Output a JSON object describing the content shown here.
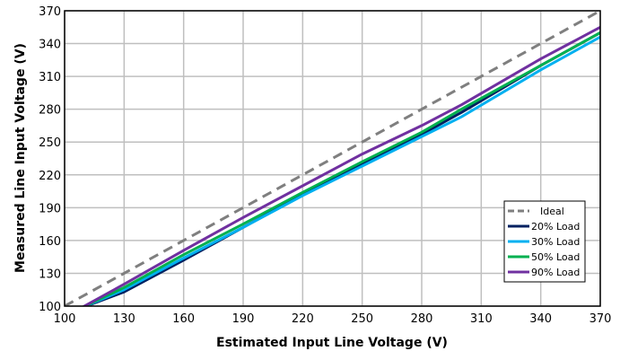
{
  "chart_data": {
    "type": "line",
    "title": "",
    "xlabel": "Estimated Input Line Voltage (V)",
    "ylabel": "Measured Line Input Voltage (V)",
    "xlim": [
      100,
      370
    ],
    "ylim": [
      100,
      370
    ],
    "xticks": [
      100,
      130,
      160,
      190,
      220,
      250,
      280,
      310,
      340,
      370
    ],
    "yticks": [
      100,
      130,
      160,
      190,
      220,
      250,
      280,
      310,
      340,
      370
    ],
    "grid": true,
    "legend_position": "bottom-right",
    "series": [
      {
        "name": "Ideal",
        "color": "#7f7f7f",
        "dashed": true,
        "points": [
          [
            100,
            100
          ],
          [
            370,
            370
          ]
        ]
      },
      {
        "name": "20% Load",
        "color": "#002060",
        "dashed": false,
        "points": [
          [
            108,
            98
          ],
          [
            130,
            113
          ],
          [
            160,
            142
          ],
          [
            190,
            172
          ],
          [
            220,
            202
          ],
          [
            250,
            230
          ],
          [
            280,
            257
          ],
          [
            300,
            277
          ],
          [
            340,
            320
          ],
          [
            370,
            350
          ]
        ]
      },
      {
        "name": "30% Load",
        "color": "#00b0f0",
        "dashed": false,
        "points": [
          [
            108,
            98
          ],
          [
            130,
            115
          ],
          [
            160,
            144
          ],
          [
            190,
            172
          ],
          [
            220,
            201
          ],
          [
            250,
            228
          ],
          [
            280,
            255
          ],
          [
            300,
            273
          ],
          [
            340,
            316
          ],
          [
            370,
            346
          ]
        ]
      },
      {
        "name": "50% Load",
        "color": "#00b050",
        "dashed": false,
        "points": [
          [
            108,
            98
          ],
          [
            130,
            117
          ],
          [
            160,
            147
          ],
          [
            190,
            175
          ],
          [
            220,
            204
          ],
          [
            250,
            232
          ],
          [
            280,
            259
          ],
          [
            300,
            280
          ],
          [
            340,
            320
          ],
          [
            370,
            350
          ]
        ]
      },
      {
        "name": "90% Load",
        "color": "#7030a0",
        "dashed": false,
        "points": [
          [
            108,
            98
          ],
          [
            130,
            120
          ],
          [
            160,
            151
          ],
          [
            190,
            181
          ],
          [
            220,
            210
          ],
          [
            250,
            239
          ],
          [
            280,
            265
          ],
          [
            300,
            284
          ],
          [
            340,
            326
          ],
          [
            370,
            355
          ]
        ]
      }
    ]
  }
}
